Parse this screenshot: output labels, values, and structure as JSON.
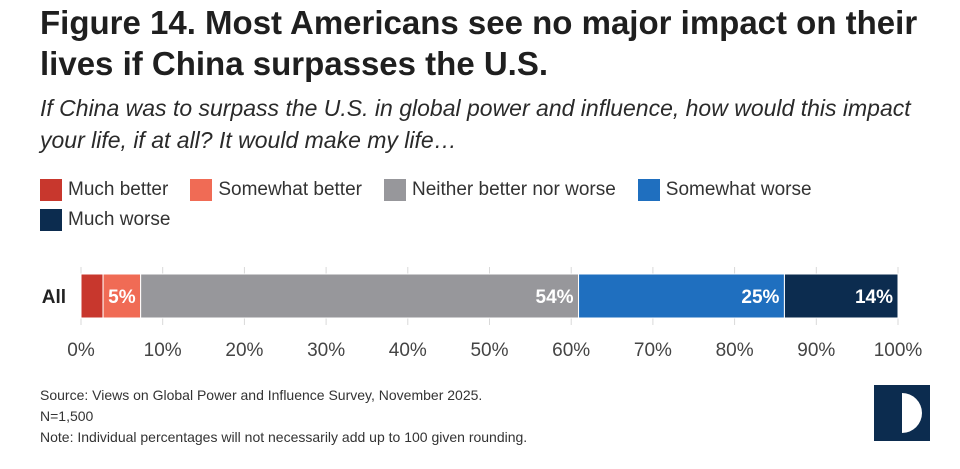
{
  "header": {
    "title": "Figure 14. Most Americans see no major impact on their lives if China surpasses the U.S.",
    "subtitle": "If China was to surpass the U.S. in global power and influence, how would this impact your life, if at all? It would make my life…"
  },
  "chart_data": {
    "type": "bar",
    "orientation": "horizontal",
    "stacked": true,
    "categories": [
      "All"
    ],
    "series": [
      {
        "name": "Much better",
        "values": [
          2.7
        ],
        "label": "",
        "color": "#c8372d"
      },
      {
        "name": "Somewhat better",
        "values": [
          4.6
        ],
        "label": "5%",
        "color": "#f06b55"
      },
      {
        "name": "Neither better nor worse",
        "values": [
          53.6
        ],
        "label": "54%",
        "color": "#97979b"
      },
      {
        "name": "Somewhat worse",
        "values": [
          25.2
        ],
        "label": "25%",
        "color": "#1f6fbf"
      },
      {
        "name": "Much worse",
        "values": [
          13.9
        ],
        "label": "14%",
        "color": "#0c2c4f"
      }
    ],
    "x_ticks": [
      "0%",
      "10%",
      "20%",
      "30%",
      "40%",
      "50%",
      "60%",
      "70%",
      "80%",
      "90%",
      "100%"
    ],
    "xlim": [
      0,
      100
    ],
    "grid": true,
    "legend_position": "top"
  },
  "footer": {
    "source": "Source: Views on Global Power and Influence Survey, November 2025.",
    "n": "N=1,500",
    "note": "Note: Individual percentages will not necessarily add up to 100 given rounding."
  },
  "logo": {
    "icon": "half-circle-logo-icon",
    "colors": [
      "#0c2c4f",
      "#ffffff"
    ]
  }
}
